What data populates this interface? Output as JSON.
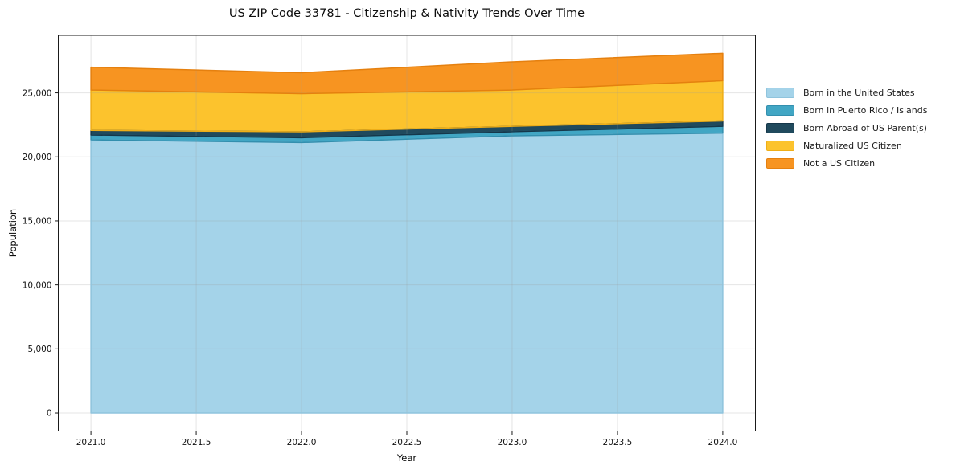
{
  "chart": {
    "title": "US ZIP Code 33781 - Citizenship & Nativity Trends Over Time",
    "xlabel": "Year",
    "ylabel": "Population"
  },
  "chart_data": {
    "type": "area",
    "stacked": true,
    "title": "US ZIP Code 33781 - Citizenship & Nativity Trends Over Time",
    "xlabel": "Year",
    "ylabel": "Population",
    "x": [
      2021,
      2022,
      2023,
      2024
    ],
    "series": [
      {
        "name": "Born in the United States",
        "values": [
          21330,
          21120,
          21650,
          21860
        ],
        "color": "#a4d3e9",
        "edge_color": "#8fc4dd"
      },
      {
        "name": "Born in Puerto Rico / Islands",
        "values": [
          380,
          380,
          315,
          530
        ],
        "color": "#41a6c4",
        "edge_color": "#338fae"
      },
      {
        "name": "Born Abroad of US Parent(s)",
        "values": [
          360,
          460,
          425,
          415
        ],
        "color": "#204a5d",
        "edge_color": "#15374a"
      },
      {
        "name": "Naturalized US Citizen",
        "values": [
          3150,
          2980,
          2830,
          3145
        ],
        "color": "#fcc32d",
        "edge_color": "#efae17"
      },
      {
        "name": "Not a US Citizen",
        "values": [
          1780,
          1635,
          2200,
          2140
        ],
        "color": "#f79421",
        "edge_color": "#e5800f"
      }
    ],
    "x_ticks": [
      2021.0,
      2021.5,
      2022.0,
      2022.5,
      2023.0,
      2023.5,
      2024.0
    ],
    "x_tick_labels": [
      "2021.0",
      "2021.5",
      "2022.0",
      "2022.5",
      "2023.0",
      "2023.5",
      "2024.0"
    ],
    "y_ticks": [
      0,
      5000,
      10000,
      15000,
      20000,
      25000
    ],
    "y_tick_labels": [
      "0",
      "5,000",
      "10,000",
      "15,000",
      "20,000",
      "25,000"
    ],
    "xlim": [
      2020.845,
      2024.155
    ],
    "ylim": [
      -1410,
      29490
    ],
    "grid": true,
    "legend_position": "right"
  }
}
